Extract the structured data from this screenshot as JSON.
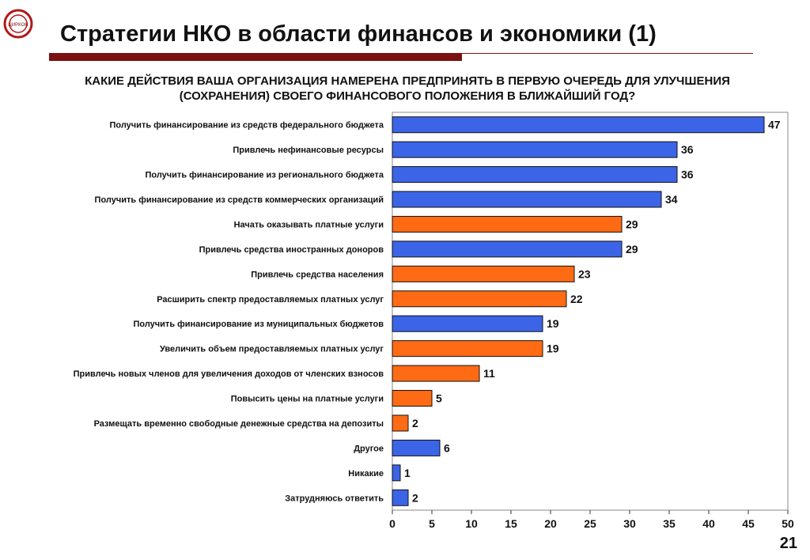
{
  "slide": {
    "title": "Стратегии НКО в области финансов и экономики (1)",
    "question": "КАКИЕ ДЕЙСТВИЯ ВАША ОРГАНИЗАЦИЯ НАМЕРЕНА ПРЕДПРИНЯТЬ В ПЕРВУЮ ОЧЕРЕДЬ ДЛЯ УЛУЧШЕНИЯ (СОХРАНЕНИЯ) СВОЕГО ФИНАНСОВОГО ПОЛОЖЕНИЯ В БЛИЖАЙШИЙ ГОД?",
    "page_number": "21",
    "logo_text": "ЦИРКОН",
    "accent_color": "#7a1010"
  },
  "chart_data": {
    "type": "bar",
    "orientation": "horizontal",
    "categories": [
      "Получить финансирование из средств федерального бюджета",
      "Привлечь нефинансовые ресурсы",
      "Получить финансирование из регионального бюджета",
      "Получить финансирование из средств коммерческих организаций",
      "Начать оказывать платные услуги",
      "Привлечь средства иностранных доноров",
      "Привлечь средства населения",
      "Расширить спектр предоставляемых платных услуг",
      "Получить финансирование из муниципальных бюджетов",
      "Увеличить объем предоставляемых платных услуг",
      "Привлечь новых членов для увеличения доходов от членских взносов",
      "Повысить цены на платные услуги",
      "Размещать временно свободные денежные средства на депозиты",
      "Другое",
      "Никакие",
      "Затрудняюсь ответить"
    ],
    "values": [
      47,
      36,
      36,
      34,
      29,
      29,
      23,
      22,
      19,
      19,
      11,
      5,
      2,
      6,
      1,
      2
    ],
    "bar_colors": [
      "blue",
      "blue",
      "blue",
      "blue",
      "orange",
      "blue",
      "orange",
      "orange",
      "blue",
      "orange",
      "orange",
      "orange",
      "orange",
      "blue",
      "blue",
      "blue"
    ],
    "colors": {
      "blue": "#3c64e6",
      "orange": "#ff6a14",
      "bar_outline": "#111111"
    },
    "xlim": [
      0,
      50
    ],
    "xticks": [
      0,
      5,
      10,
      15,
      20,
      25,
      30,
      35,
      40,
      45,
      50
    ],
    "grid": false,
    "data_labels": true
  }
}
